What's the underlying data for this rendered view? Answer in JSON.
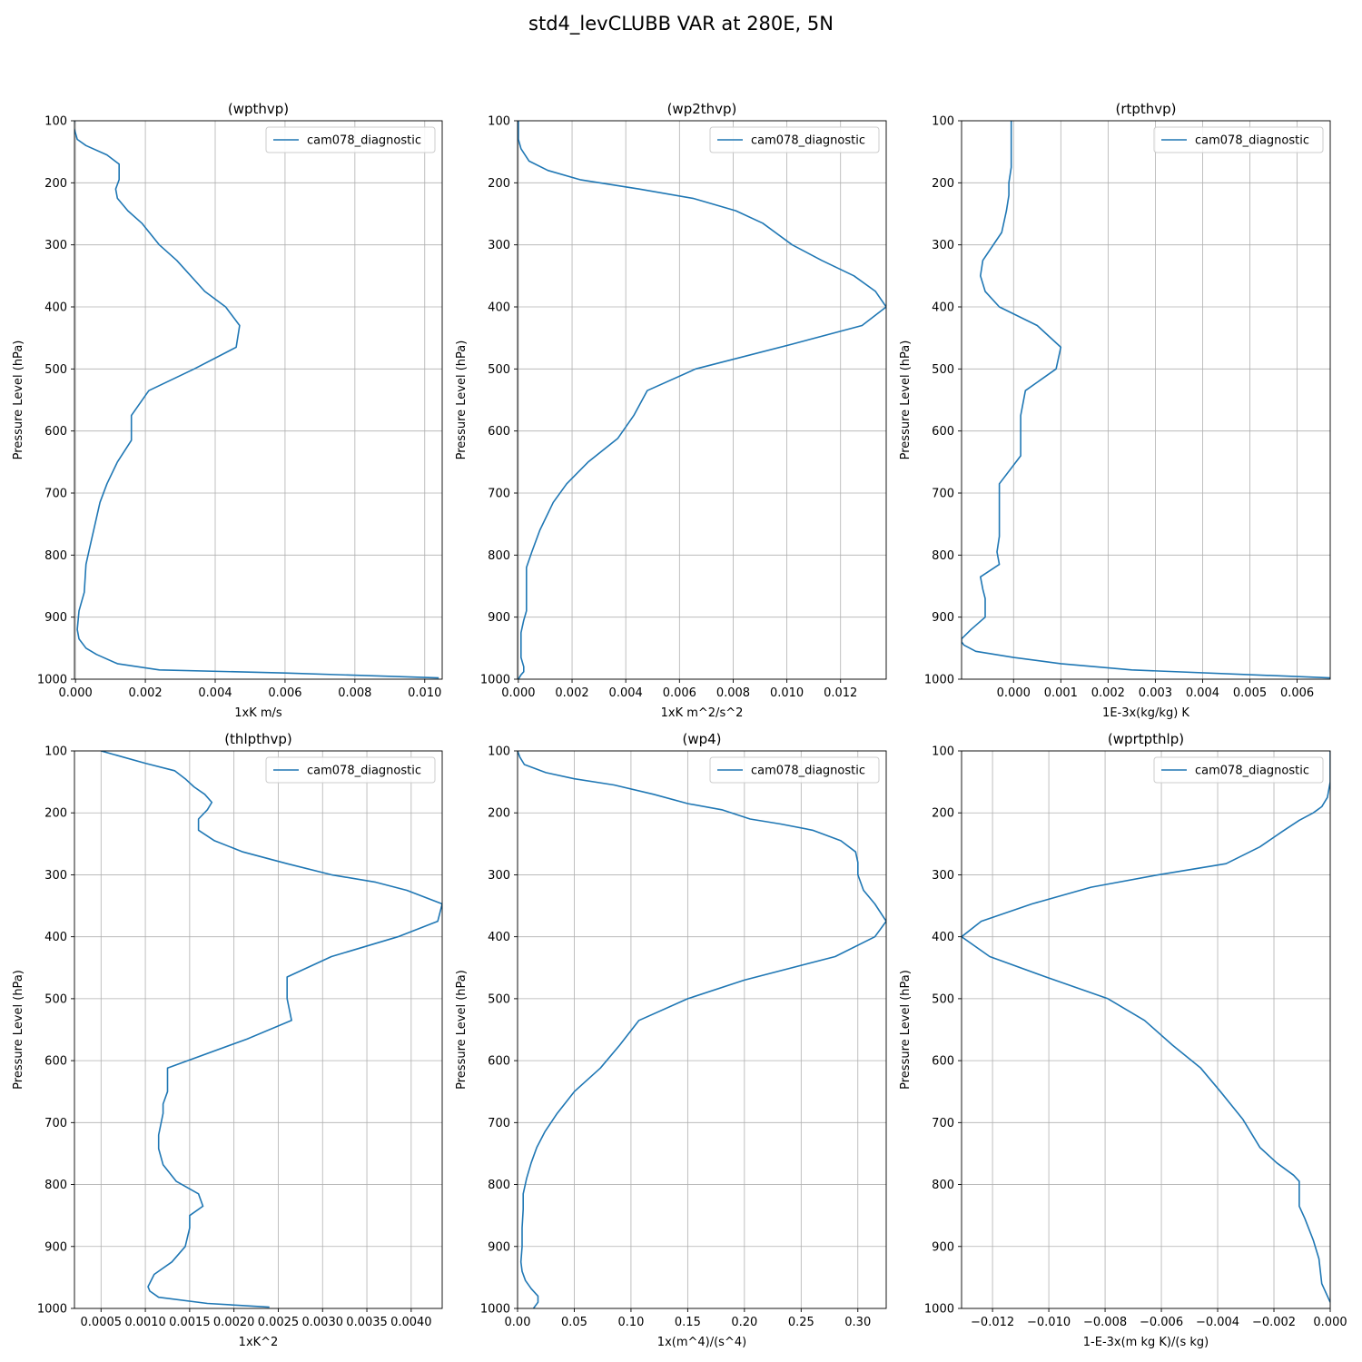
{
  "figure_title": "std4_levCLUBB VAR at 280E, 5N",
  "colors": {
    "series": "#1f77b4",
    "grid": "#b0b0b0",
    "axis": "#000000"
  },
  "chart_data": [
    {
      "type": "line",
      "title": "(wpthvp)",
      "xlabel": "1xK m/s",
      "ylabel": "Pressure Level (hPa)",
      "xlim": [
        -3e-05,
        0.0105
      ],
      "ylim": [
        1000,
        100
      ],
      "xticks": [
        0.0,
        0.002,
        0.004,
        0.006,
        0.008,
        0.01
      ],
      "xticklabels": [
        "0.000",
        "0.002",
        "0.004",
        "0.006",
        "0.008",
        "0.010"
      ],
      "yticks": [
        100,
        200,
        300,
        400,
        500,
        600,
        700,
        800,
        900,
        1000
      ],
      "yticklabels": [
        "100",
        "200",
        "300",
        "400",
        "500",
        "600",
        "700",
        "800",
        "900",
        "1000"
      ],
      "legend_loc": "upper right",
      "grid": true,
      "series": [
        {
          "name": "cam078_diagnostic",
          "x": [
            -3e-05,
            -5e-05,
            5e-05,
            0.0003,
            0.0009,
            0.00125,
            0.00125,
            0.00115,
            0.0012,
            0.0015,
            0.0019,
            0.0024,
            0.0029,
            0.0037,
            0.0043,
            0.0047,
            0.0046,
            0.0034,
            0.0021,
            0.0016,
            0.0016,
            0.0012,
            0.0009,
            0.0007,
            0.0004,
            0.0003,
            0.00025,
            0.0001,
            5e-05,
            0.0001,
            0.0003,
            0.0006,
            0.0012,
            0.0024,
            0.006,
            0.0104
          ],
          "y": [
            100,
            110,
            130,
            140,
            155,
            170,
            195,
            210,
            225,
            245,
            265,
            300,
            325,
            375,
            400,
            430,
            465,
            500,
            535,
            575,
            615,
            650,
            685,
            715,
            790,
            815,
            860,
            890,
            920,
            935,
            950,
            960,
            975,
            985,
            990,
            998
          ]
        }
      ]
    },
    {
      "type": "line",
      "title": "(wp2thvp)",
      "xlabel": "1xK m^2/s^2",
      "ylabel": "Pressure Level (hPa)",
      "xlim": [
        -3e-05,
        0.0137
      ],
      "ylim": [
        1000,
        100
      ],
      "xticks": [
        0.0,
        0.002,
        0.004,
        0.006,
        0.008,
        0.01,
        0.012
      ],
      "xticklabels": [
        "0.000",
        "0.002",
        "0.004",
        "0.006",
        "0.008",
        "0.010",
        "0.012"
      ],
      "yticks": [
        100,
        200,
        300,
        400,
        500,
        600,
        700,
        800,
        900,
        1000
      ],
      "yticklabels": [
        "100",
        "200",
        "300",
        "400",
        "500",
        "600",
        "700",
        "800",
        "900",
        "1000"
      ],
      "legend_loc": "upper right",
      "grid": true,
      "series": [
        {
          "name": "cam078_diagnostic",
          "x": [
            0.0,
            0.0,
            0.0001,
            0.0004,
            0.0011,
            0.0023,
            0.0045,
            0.0065,
            0.0081,
            0.0091,
            0.0102,
            0.0113,
            0.0125,
            0.0133,
            0.0137,
            0.0128,
            0.0102,
            0.0066,
            0.0048,
            0.0043,
            0.0037,
            0.0026,
            0.0018,
            0.0013,
            0.0008,
            0.0005,
            0.0003,
            0.0003,
            0.0003,
            0.0003,
            0.0002,
            0.0001,
            0.0001,
            0.0001,
            0.0002,
            0.0002,
            0.0001,
            0.0
          ],
          "y": [
            100,
            130,
            145,
            165,
            180,
            195,
            210,
            225,
            245,
            265,
            300,
            325,
            350,
            375,
            400,
            430,
            460,
            500,
            535,
            575,
            612,
            650,
            685,
            715,
            760,
            795,
            820,
            840,
            870,
            890,
            905,
            925,
            950,
            965,
            980,
            988,
            993,
            1000
          ]
        }
      ]
    },
    {
      "type": "line",
      "title": "(rtpthvp)",
      "xlabel": "1E-3x(kg/kg) K",
      "ylabel": "Pressure Level (hPa)",
      "xlim": [
        -0.0011,
        0.0067
      ],
      "ylim": [
        1000,
        100
      ],
      "xticks": [
        0.0,
        0.001,
        0.002,
        0.003,
        0.004,
        0.005,
        0.006
      ],
      "xticklabels": [
        "0.000",
        "0.001",
        "0.002",
        "0.003",
        "0.004",
        "0.005",
        "0.006"
      ],
      "yticks": [
        100,
        200,
        300,
        400,
        500,
        600,
        700,
        800,
        900,
        1000
      ],
      "yticklabels": [
        "100",
        "200",
        "300",
        "400",
        "500",
        "600",
        "700",
        "800",
        "900",
        "1000"
      ],
      "legend_loc": "upper right",
      "grid": true,
      "series": [
        {
          "name": "cam078_diagnostic",
          "x": [
            -5e-05,
            -5e-05,
            -5e-05,
            -0.0001,
            -0.0001,
            -0.00015,
            -0.00025,
            -0.00065,
            -0.0007,
            -0.0006,
            -0.0003,
            0.0005,
            0.001,
            0.0009,
            0.00025,
            0.00015,
            0.00015,
            0.00015,
            -0.0003,
            -0.0003,
            -0.0003,
            -0.00035,
            -0.0003,
            -0.0007,
            -0.00065,
            -0.0006,
            -0.0006,
            -0.0006,
            -0.0009,
            -0.0011,
            -0.0011,
            -0.00105,
            -0.0008,
            0.0,
            0.001,
            0.0025,
            0.0067
          ],
          "y": [
            100,
            145,
            175,
            200,
            220,
            245,
            280,
            325,
            350,
            375,
            400,
            430,
            465,
            500,
            535,
            575,
            615,
            640,
            685,
            745,
            770,
            795,
            815,
            835,
            855,
            870,
            885,
            900,
            920,
            935,
            940,
            945,
            955,
            965,
            975,
            985,
            998
          ]
        }
      ]
    },
    {
      "type": "line",
      "title": "(thlpthvp)",
      "xlabel": "1xK^2",
      "ylabel": "Pressure Level (hPa)",
      "xlim": [
        0.0002,
        0.00435
      ],
      "ylim": [
        1000,
        100
      ],
      "xticks": [
        0.0005,
        0.001,
        0.0015,
        0.002,
        0.0025,
        0.003,
        0.0035,
        0.004
      ],
      "xticklabels": [
        "0.0005",
        "0.0010",
        "0.0015",
        "0.0020",
        "0.0025",
        "0.0030",
        "0.0035",
        "0.0040"
      ],
      "yticks": [
        100,
        200,
        300,
        400,
        500,
        600,
        700,
        800,
        900,
        1000
      ],
      "yticklabels": [
        "100",
        "200",
        "300",
        "400",
        "500",
        "600",
        "700",
        "800",
        "900",
        "1000"
      ],
      "legend_loc": "upper right",
      "grid": true,
      "series": [
        {
          "name": "cam078_diagnostic",
          "x": [
            0.0005,
            0.001,
            0.00133,
            0.00145,
            0.00155,
            0.00167,
            0.00175,
            0.0017,
            0.0016,
            0.0016,
            0.00178,
            0.0021,
            0.0026,
            0.0031,
            0.0036,
            0.00395,
            0.00435,
            0.0043,
            0.00385,
            0.0031,
            0.0026,
            0.0026,
            0.0026,
            0.00265,
            0.00215,
            0.00125,
            0.00125,
            0.0012,
            0.0012,
            0.00115,
            0.00115,
            0.0012,
            0.00135,
            0.0016,
            0.00165,
            0.0015,
            0.0015,
            0.00145,
            0.0013,
            0.0011,
            0.00103,
            0.00105,
            0.00115,
            0.0017,
            0.0024
          ],
          "y": [
            100,
            120,
            132,
            145,
            158,
            170,
            183,
            195,
            210,
            228,
            245,
            263,
            282,
            300,
            312,
            325,
            347,
            375,
            400,
            432,
            465,
            485,
            500,
            535,
            565,
            612,
            650,
            670,
            685,
            720,
            742,
            768,
            795,
            815,
            835,
            850,
            870,
            900,
            925,
            945,
            965,
            972,
            982,
            992,
            998
          ]
        }
      ]
    },
    {
      "type": "line",
      "title": "(wp4)",
      "xlabel": "1x(m^4)/(s^4)",
      "ylabel": "Pressure Level (hPa)",
      "xlim": [
        0.0,
        0.325
      ],
      "ylim": [
        1000,
        100
      ],
      "xticks": [
        0.0,
        0.05,
        0.1,
        0.15,
        0.2,
        0.25,
        0.3
      ],
      "xticklabels": [
        "0.00",
        "0.05",
        "0.10",
        "0.15",
        "0.20",
        "0.25",
        "0.30"
      ],
      "yticks": [
        100,
        200,
        300,
        400,
        500,
        600,
        700,
        800,
        900,
        1000
      ],
      "yticklabels": [
        "100",
        "200",
        "300",
        "400",
        "500",
        "600",
        "700",
        "800",
        "900",
        "1000"
      ],
      "legend_loc": "upper right",
      "grid": true,
      "series": [
        {
          "name": "cam078_diagnostic",
          "x": [
            0.0,
            0.002,
            0.006,
            0.025,
            0.05,
            0.085,
            0.12,
            0.15,
            0.18,
            0.205,
            0.232,
            0.26,
            0.285,
            0.298,
            0.3,
            0.3,
            0.305,
            0.315,
            0.325,
            0.315,
            0.28,
            0.2,
            0.15,
            0.107,
            0.09,
            0.073,
            0.05,
            0.035,
            0.024,
            0.017,
            0.012,
            0.008,
            0.005,
            0.005,
            0.004,
            0.004,
            0.003,
            0.004,
            0.007,
            0.012,
            0.018,
            0.018,
            0.014
          ],
          "y": [
            100,
            110,
            122,
            135,
            145,
            155,
            170,
            185,
            195,
            210,
            218,
            228,
            245,
            263,
            280,
            300,
            325,
            347,
            375,
            400,
            432,
            470,
            500,
            535,
            575,
            612,
            650,
            685,
            715,
            740,
            765,
            790,
            815,
            840,
            870,
            900,
            925,
            940,
            955,
            968,
            980,
            990,
            1000
          ]
        }
      ]
    },
    {
      "type": "line",
      "title": "(wprtpthlp)",
      "xlabel": "1-E-3x(m kg K)/(s kg)",
      "ylabel": "Pressure Level (hPa)",
      "xlim": [
        -0.0131,
        0.0
      ],
      "ylim": [
        1000,
        100
      ],
      "xticks": [
        -0.012,
        -0.01,
        -0.008,
        -0.006,
        -0.004,
        -0.002,
        0.0
      ],
      "xticklabels": [
        "−0.012",
        "−0.010",
        "−0.008",
        "−0.006",
        "−0.004",
        "−0.002",
        "0.000"
      ],
      "yticks": [
        100,
        200,
        300,
        400,
        500,
        600,
        700,
        800,
        900,
        1000
      ],
      "yticklabels": [
        "100",
        "200",
        "300",
        "400",
        "500",
        "600",
        "700",
        "800",
        "900",
        "1000"
      ],
      "legend_loc": "upper right",
      "grid": true,
      "series": [
        {
          "name": "cam078_diagnostic",
          "x": [
            0.0,
            0.0,
            -0.0001,
            -0.0003,
            -0.0006,
            -0.0011,
            -0.0017,
            -0.0025,
            -0.0037,
            -0.0061,
            -0.0085,
            -0.0106,
            -0.0124,
            -0.0131,
            -0.0121,
            -0.0101,
            -0.0079,
            -0.0066,
            -0.0056,
            -0.0046,
            -0.0039,
            -0.0031,
            -0.0025,
            -0.0019,
            -0.0013,
            -0.0011,
            -0.0011,
            -0.0009,
            -0.0006,
            -0.0004,
            -0.0003,
            0.0
          ],
          "y": [
            100,
            150,
            175,
            190,
            200,
            212,
            230,
            255,
            282,
            300,
            320,
            347,
            375,
            400,
            432,
            465,
            500,
            535,
            575,
            612,
            650,
            695,
            740,
            765,
            785,
            795,
            835,
            855,
            890,
            920,
            960,
            990
          ]
        }
      ]
    }
  ]
}
